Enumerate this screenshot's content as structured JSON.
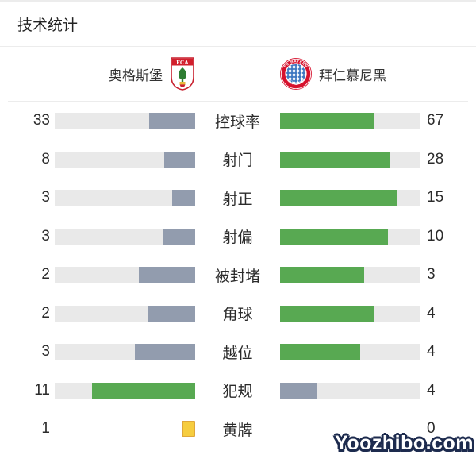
{
  "header": {
    "home_logo": "fca-augsburg-crest",
    "home_logo_text": "FCA",
    "away_logo": "fc-bayern-crest",
    "away_logo_text_top": "FC BAYERN",
    "away_logo_text_bottom": "MÜNCHEN"
  },
  "colors": {
    "winner_bar": "#58a952",
    "loser_bar": "#929cae",
    "track": "#e9e9e9",
    "yellow_card": "#f6cd3f",
    "yellow_card_border": "#dfa73a"
  },
  "chart_data": {
    "type": "bar",
    "subtype": "paired-horizontal-stat-comparison",
    "title": "技术统计",
    "categories": [
      "控球率",
      "射门",
      "射正",
      "射偏",
      "被封堵",
      "角球",
      "越位",
      "犯规",
      "黄牌"
    ],
    "series": [
      {
        "name": "奥格斯堡",
        "values": [
          33,
          8,
          3,
          3,
          2,
          2,
          3,
          11,
          1
        ]
      },
      {
        "name": "拜仁慕尼黑",
        "values": [
          67,
          28,
          15,
          10,
          3,
          4,
          4,
          4,
          0
        ]
      }
    ],
    "card_row": "黄牌",
    "encoding": "bar length = value / (home+away); side with larger value is green, smaller is gray; home bars grow right-to-left, away bars left-to-right; yellow-card row shows a card icon instead of bars",
    "legend_position": "none",
    "grid": false
  },
  "watermark": "Yoozhibo.com"
}
